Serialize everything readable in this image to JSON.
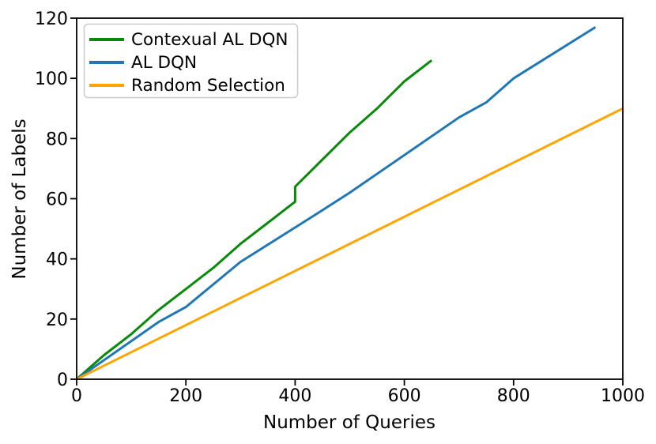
{
  "figure": {
    "background": "#ffffff"
  },
  "chart_data": {
    "type": "line",
    "title": "",
    "xlabel": "Number of Queries",
    "ylabel": "Number of Labels",
    "xlim": [
      0,
      1000
    ],
    "ylim": [
      0,
      120
    ],
    "x_ticks": [
      0,
      200,
      400,
      600,
      800,
      1000
    ],
    "y_ticks": [
      0,
      20,
      40,
      60,
      80,
      100,
      120
    ],
    "grid": false,
    "axis_color": "#000000",
    "legend": {
      "position": "upper-left",
      "entries": [
        "Contexual AL DQN",
        "AL DQN",
        "Random Selection"
      ]
    },
    "series": [
      {
        "name": "Contexual AL DQN",
        "color": "#0a8a0a",
        "points": [
          [
            0,
            0
          ],
          [
            50,
            8
          ],
          [
            100,
            15
          ],
          [
            150,
            23
          ],
          [
            200,
            30
          ],
          [
            250,
            37
          ],
          [
            300,
            45
          ],
          [
            350,
            52
          ],
          [
            400,
            59
          ],
          [
            400,
            64
          ],
          [
            450,
            73
          ],
          [
            500,
            82
          ],
          [
            550,
            90
          ],
          [
            600,
            99
          ],
          [
            650,
            106
          ]
        ]
      },
      {
        "name": "AL DQN",
        "color": "#1f77b4",
        "points": [
          [
            0,
            0
          ],
          [
            150,
            19
          ],
          [
            200,
            24
          ],
          [
            300,
            39
          ],
          [
            440,
            55
          ],
          [
            500,
            62
          ],
          [
            580,
            72
          ],
          [
            700,
            87
          ],
          [
            750,
            92
          ],
          [
            800,
            100
          ],
          [
            950,
            117
          ]
        ]
      },
      {
        "name": "Random Selection",
        "color": "#ffa500",
        "points": [
          [
            0,
            0
          ],
          [
            1000,
            90
          ]
        ]
      }
    ]
  }
}
